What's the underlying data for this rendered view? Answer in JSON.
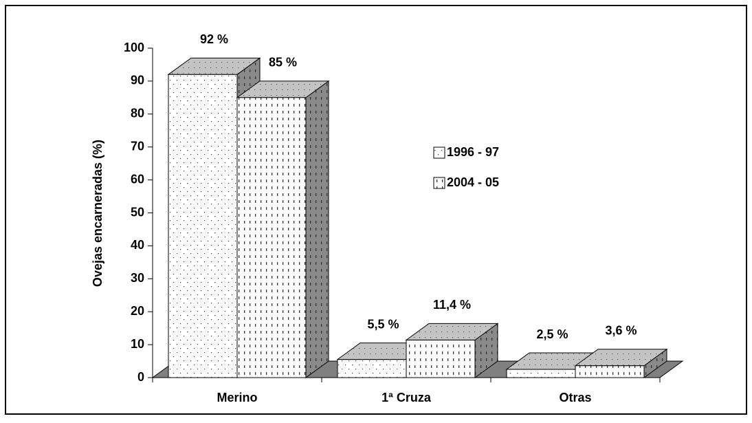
{
  "chart_data": {
    "type": "bar",
    "y_label": "Ovejas encarneradas (%)",
    "categories": [
      "Merino",
      "1ª Cruza",
      "Otras"
    ],
    "series": [
      {
        "name": "1996 - 97",
        "values": [
          92,
          5.5,
          2.5
        ],
        "value_labels": [
          "92 %",
          "5,5 %",
          "2,5 %"
        ]
      },
      {
        "name": "2004 - 05",
        "values": [
          85,
          11.4,
          3.6
        ],
        "value_labels": [
          "85 %",
          "11,4 %",
          "3,6 %"
        ]
      }
    ],
    "ylim": [
      0,
      100
    ],
    "yticks": [
      0,
      10,
      20,
      30,
      40,
      50,
      60,
      70,
      80,
      90,
      100
    ]
  }
}
